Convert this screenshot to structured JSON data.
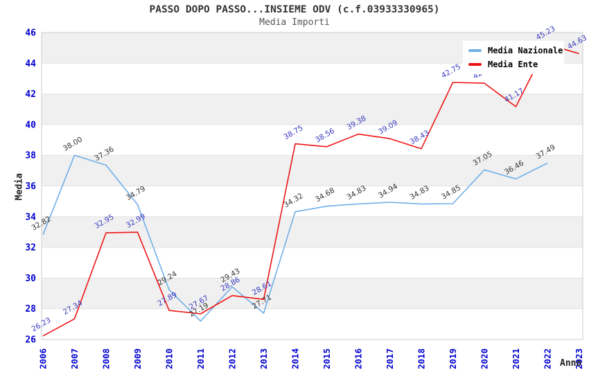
{
  "header": {
    "title": "PASSO DOPO PASSO...INSIEME ODV (c.f.03933330965)",
    "subtitle": "Media Importi"
  },
  "axes": {
    "y_label": "Media",
    "x_label": "Anno"
  },
  "colors": {
    "axis_tick_text": "#0000d0",
    "band_fill": "#f0f0f0",
    "grid_line": "#e2e2e2",
    "plot_border": "#cccccc",
    "title_text": "#333333",
    "subtitle_text": "#555555"
  },
  "chart_data": {
    "type": "line",
    "title": "PASSO DOPO PASSO...INSIEME ODV (c.f.03933330965)",
    "subtitle": "Media Importi",
    "xlabel": "Anno",
    "ylabel": "Media",
    "ylim": [
      26,
      46
    ],
    "y_tick_step": 2,
    "grid": "horizontal-bands",
    "legend_position": "top-right",
    "categories": [
      "2006",
      "2007",
      "2008",
      "2009",
      "2010",
      "2011",
      "2012",
      "2013",
      "2014",
      "2015",
      "2016",
      "2017",
      "2018",
      "2019",
      "2020",
      "2021",
      "2022",
      "2023"
    ],
    "series": [
      {
        "name": "Media Nazionale",
        "color": "#6fafe8",
        "label_color": "#333333",
        "values": [
          32.82,
          38.0,
          37.36,
          34.79,
          29.24,
          27.19,
          29.43,
          27.71,
          34.32,
          34.68,
          34.83,
          34.94,
          34.83,
          34.85,
          37.05,
          36.46,
          37.49,
          null
        ]
      },
      {
        "name": "Media Ente",
        "color": "#ee1414",
        "label_color": "#3a3ac0",
        "values": [
          26.23,
          27.34,
          32.95,
          32.99,
          27.89,
          27.67,
          28.86,
          28.61,
          38.75,
          38.56,
          39.38,
          39.09,
          38.43,
          42.75,
          42.7,
          41.17,
          45.23,
          44.63
        ]
      }
    ]
  }
}
